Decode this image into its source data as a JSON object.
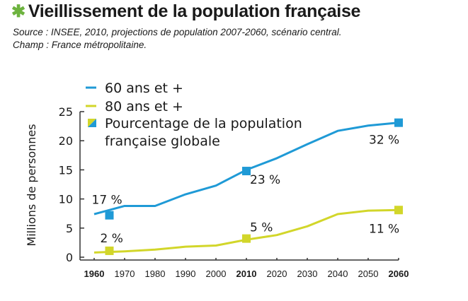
{
  "header": {
    "star_icon": "green-asterisk",
    "title": "Vieillissement de la population française",
    "source": "Source : INSEE, 2010, projections de population 2007-2060, scénario central.",
    "scope": "Champ : France métropolitaine."
  },
  "colors": {
    "blue": "#1f9ad6",
    "yellow": "#d2d62a",
    "star": "#6db33f"
  },
  "chart_data": {
    "type": "line",
    "title": "Vieillissement de la population française",
    "xlabel": "",
    "ylabel": "Millions de personnes",
    "ylim": [
      0,
      25
    ],
    "xlim": [
      1960,
      2060
    ],
    "yticks": [
      0,
      5,
      10,
      15,
      20,
      25
    ],
    "x": [
      1960,
      1970,
      1980,
      1990,
      2000,
      2010,
      2020,
      2030,
      2040,
      2050,
      2060
    ],
    "xtick_labels": [
      "1960",
      "1970",
      "1980",
      "1990",
      "2000",
      "2010",
      "2020",
      "2030",
      "2040",
      "2050",
      "2060"
    ],
    "bold_xticks": [
      "1960",
      "2010",
      "2060"
    ],
    "grid": false,
    "legend_position": "top-left",
    "legend": [
      "60 ans et +",
      "80 ans et +",
      "Pourcentage de la population française globale"
    ],
    "series": [
      {
        "name": "60 ans et +",
        "color": "#1f9ad6",
        "values": [
          7.4,
          8.8,
          8.8,
          10.8,
          12.3,
          15.0,
          17.0,
          19.4,
          21.7,
          22.6,
          23.1
        ]
      },
      {
        "name": "80 ans et +",
        "color": "#d2d62a",
        "values": [
          0.8,
          1.0,
          1.3,
          1.8,
          2.0,
          3.0,
          3.8,
          5.3,
          7.4,
          8.0,
          8.1
        ]
      }
    ],
    "percent_markers": [
      {
        "series": "60 ans et +",
        "x": 1965,
        "y": 7.2,
        "label": "17 %"
      },
      {
        "series": "60 ans et +",
        "x": 2010,
        "y": 14.8,
        "label": "23 %"
      },
      {
        "series": "60 ans et +",
        "x": 2060,
        "y": 23.1,
        "label": "32 %"
      },
      {
        "series": "80 ans et +",
        "x": 1965,
        "y": 1.1,
        "label": "2 %"
      },
      {
        "series": "80 ans et +",
        "x": 2010,
        "y": 3.2,
        "label": "5 %"
      },
      {
        "series": "80 ans et +",
        "x": 2060,
        "y": 8.1,
        "label": "11 %"
      }
    ]
  }
}
